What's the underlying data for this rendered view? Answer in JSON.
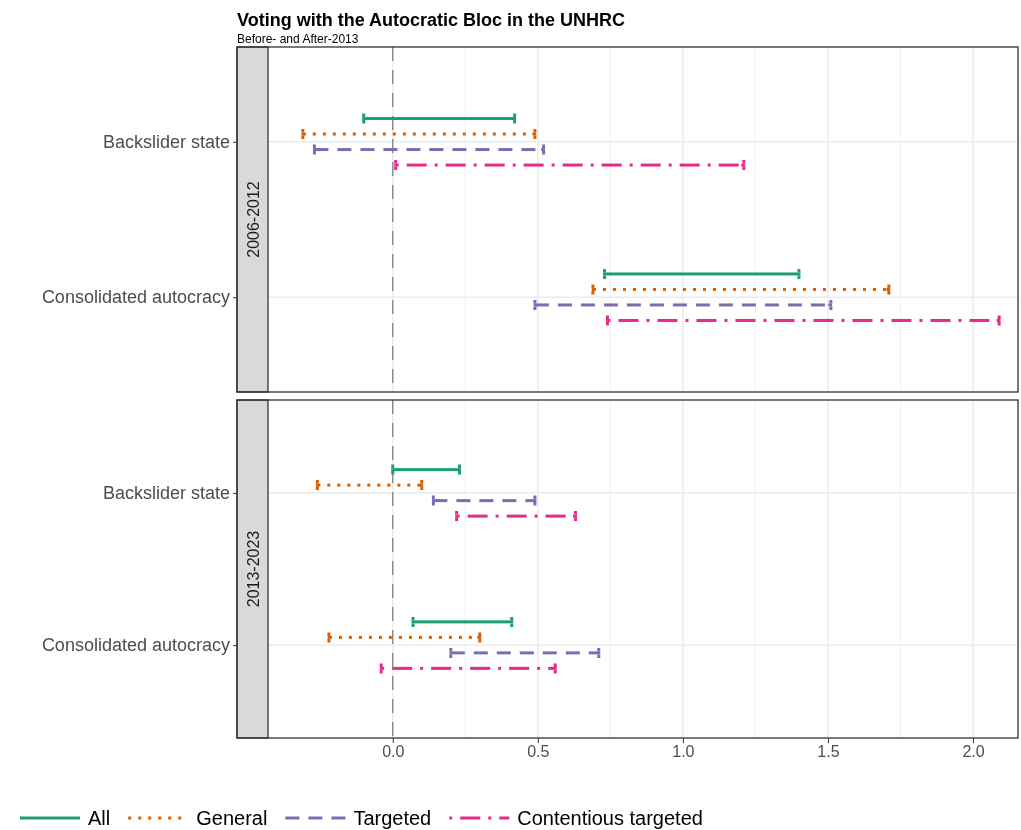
{
  "chart_data": [
    {
      "type": "bar",
      "orientation": "horizontal",
      "title": "Voting with the Autocratic Bloc in the UNHRC",
      "subtitle": "Before- and After-2013",
      "annotations": [
        "2006-2012"
      ],
      "categories": [
        "Backslider state",
        "Consolidated autocracy"
      ],
      "series": [
        {
          "name": "All",
          "color": "#1b9e77",
          "line_style": "solid",
          "base": [
            -0.1,
            0.73
          ],
          "values": [
            0.52,
            0.67
          ]
        },
        {
          "name": "General",
          "color": "#d95f02",
          "line_style": "dotted",
          "base": [
            -0.31,
            0.69
          ],
          "values": [
            0.8,
            1.02
          ]
        },
        {
          "name": "Targeted",
          "color": "#7570b3",
          "line_style": "dashed",
          "base": [
            -0.27,
            0.49
          ],
          "values": [
            0.79,
            1.02
          ]
        },
        {
          "name": "Contentious targeted",
          "color": "#e7298a",
          "line_style": "dashdot",
          "base": [
            0.01,
            0.74
          ],
          "values": [
            1.2,
            1.35
          ]
        }
      ],
      "xlim": [
        -0.43,
        2.155
      ],
      "xticks": [
        {
          "value": 0,
          "label": null
        },
        {
          "value": 0.5,
          "label": null
        },
        {
          "value": 1,
          "label": null
        },
        {
          "value": 1.5,
          "label": null
        },
        {
          "value": 2,
          "label": null
        }
      ],
      "tick_labels": "y",
      "grid": true,
      "legend": "bottom",
      "ref_lines": [
        {
          "axis": "x",
          "value": 0,
          "color": "#808080",
          "line_style": "dashed"
        }
      ]
    },
    {
      "type": "bar",
      "orientation": "horizontal",
      "annotations": [
        "2013-2023"
      ],
      "categories": [
        "Backslider state",
        "Consolidated autocracy"
      ],
      "series": [
        {
          "color": "#1b9e77",
          "line_style": "solid",
          "base": [
            0.0,
            0.07
          ],
          "values": [
            0.23,
            0.34
          ]
        },
        {
          "color": "#d95f02",
          "line_style": "dotted",
          "base": [
            -0.26,
            -0.22
          ],
          "values": [
            0.36,
            0.52
          ]
        },
        {
          "color": "#7570b3",
          "line_style": "dashed",
          "base": [
            0.14,
            0.2
          ],
          "values": [
            0.35,
            0.51
          ]
        },
        {
          "color": "#e7298a",
          "line_style": "dashdot",
          "base": [
            0.22,
            -0.04
          ],
          "values": [
            0.41,
            0.6
          ]
        }
      ],
      "xlim": [
        -0.43,
        2.155
      ],
      "xticks": [
        {
          "value": 0,
          "label": "0.0"
        },
        {
          "value": 0.5,
          "label": "0.5"
        },
        {
          "value": 1,
          "label": "1.0"
        },
        {
          "value": 1.5,
          "label": "1.5"
        },
        {
          "value": 2,
          "label": "2.0"
        }
      ],
      "grid": true,
      "ref_lines": [
        {
          "axis": "x",
          "value": 0,
          "color": "#808080",
          "line_style": "dashed"
        }
      ]
    }
  ]
}
